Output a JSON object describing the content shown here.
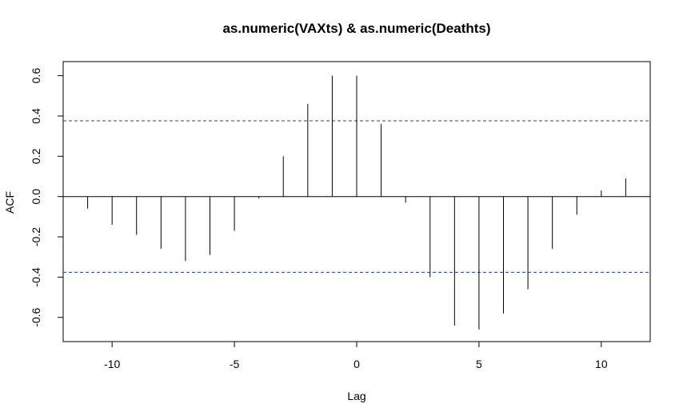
{
  "chart_data": {
    "type": "bar",
    "subtype": "ccf-spike",
    "title": "as.numeric(VAXts) & as.numeric(Deathts)",
    "xlabel": "Lag",
    "ylabel": "ACF",
    "xlim": [
      -12,
      12
    ],
    "ylim": [
      -0.72,
      0.67
    ],
    "x_ticks": [
      -10,
      -5,
      0,
      5,
      10
    ],
    "x_tick_labels": [
      "-10",
      "-5",
      "0",
      "5",
      "10"
    ],
    "y_ticks": [
      -0.6,
      -0.4,
      -0.2,
      0.0,
      0.2,
      0.4,
      0.6
    ],
    "y_tick_labels": [
      "-0.6",
      "-0.4",
      "-0.2",
      "0.0",
      "0.2",
      "0.4",
      "0.6"
    ],
    "x": [
      -11,
      -10,
      -9,
      -8,
      -7,
      -6,
      -5,
      -4,
      -3,
      -2,
      -1,
      0,
      1,
      2,
      3,
      4,
      5,
      6,
      7,
      8,
      9,
      10,
      11
    ],
    "values": [
      -0.06,
      -0.14,
      -0.19,
      -0.26,
      -0.32,
      -0.29,
      -0.17,
      -0.01,
      0.2,
      0.46,
      0.6,
      0.6,
      0.36,
      -0.03,
      -0.4,
      -0.64,
      -0.66,
      -0.58,
      -0.46,
      -0.26,
      -0.09,
      0.03,
      0.09
    ],
    "confidence_bounds": [
      0.376,
      -0.376
    ],
    "colors": {
      "spikes": "#000000",
      "bounds": "#1f3f8f",
      "zero_line": "#000000"
    },
    "grid": false
  }
}
